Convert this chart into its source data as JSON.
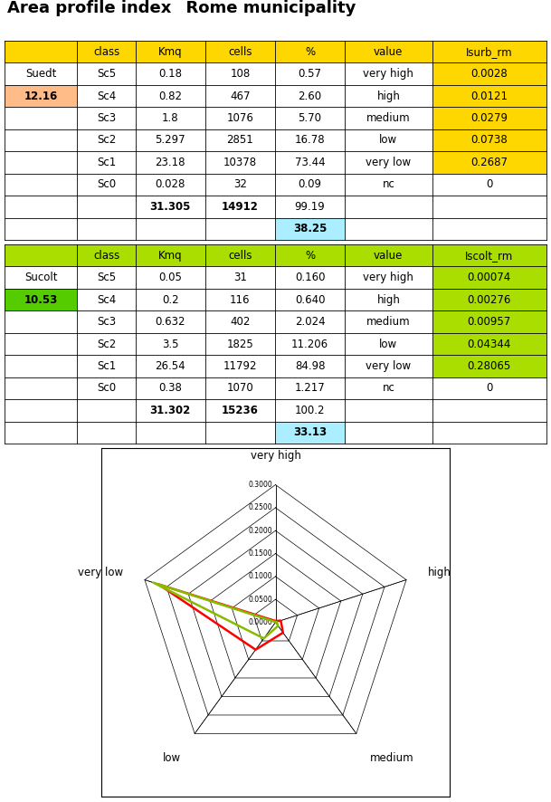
{
  "title_part1": "Area profile index",
  "title_part2": "  Rome municipality",
  "table1_header": [
    "",
    "class",
    "Kmq",
    "cells",
    "%",
    "value",
    "Isurb_rm"
  ],
  "table1_label": "Suedt",
  "table1_index": "12.16",
  "table1_rows": [
    [
      "Sc5",
      "0.18",
      "108",
      "0.57",
      "very high",
      "0.0028"
    ],
    [
      "Sc4",
      "0.82",
      "467",
      "2.60",
      "high",
      "0.0121"
    ],
    [
      "Sc3",
      "1.8",
      "1076",
      "5.70",
      "medium",
      "0.0279"
    ],
    [
      "Sc2",
      "5.297",
      "2851",
      "16.78",
      "low",
      "0.0738"
    ],
    [
      "Sc1",
      "23.18",
      "10378",
      "73.44",
      "very low",
      "0.2687"
    ],
    [
      "Sc0",
      "0.028",
      "32",
      "0.09",
      "nc",
      "0"
    ]
  ],
  "table1_total": [
    "31.305",
    "14912",
    "99.19"
  ],
  "table1_index_val": "38.25",
  "table2_header": [
    "",
    "class",
    "Kmq",
    "cells",
    "%",
    "value",
    "Iscolt_rm"
  ],
  "table2_label": "Sucolt",
  "table2_index": "10.53",
  "table2_rows": [
    [
      "Sc5",
      "0.05",
      "31",
      "0.160",
      "very high",
      "0.00074"
    ],
    [
      "Sc4",
      "0.2",
      "116",
      "0.640",
      "high",
      "0.00276"
    ],
    [
      "Sc3",
      "0.632",
      "402",
      "2.024",
      "medium",
      "0.00957"
    ],
    [
      "Sc2",
      "3.5",
      "1825",
      "11.206",
      "low",
      "0.04344"
    ],
    [
      "Sc1",
      "26.54",
      "11792",
      "84.98",
      "very low",
      "0.28065"
    ],
    [
      "Sc0",
      "0.38",
      "1070",
      "1.217",
      "nc",
      "0"
    ]
  ],
  "table2_total": [
    "31.302",
    "15236",
    "100.2"
  ],
  "table2_index_val": "33.13",
  "radar_categories": [
    "very high",
    "high",
    "medium",
    "low",
    "very low"
  ],
  "radar_values_red": [
    0.0028,
    0.0121,
    0.0279,
    0.0738,
    0.2687
  ],
  "radar_values_green": [
    0.00074,
    0.00276,
    0.00957,
    0.04344,
    0.28065
  ],
  "radar_max": 0.3,
  "radar_ticks": [
    0.0,
    0.05,
    0.1,
    0.15,
    0.2,
    0.25,
    0.3
  ],
  "radar_tick_labels": [
    "0.0000",
    "0.0500",
    "0.1000",
    "0.1500",
    "0.2000",
    "0.2500",
    "0.3000"
  ],
  "col1_header_bg": "#FFD700",
  "table1_last_col_bg": "#FFD700",
  "table2_header_bg": "#AADD00",
  "table2_last_col_bg": "#AADD00",
  "table1_index_bg": "#FFBB88",
  "table2_index_bg": "#55CC00",
  "index_val_bg": "#AAEEFF",
  "bg_color": "#FFFFFF",
  "radar_line_red": "#FF0000",
  "radar_line_green": "#88BB00"
}
